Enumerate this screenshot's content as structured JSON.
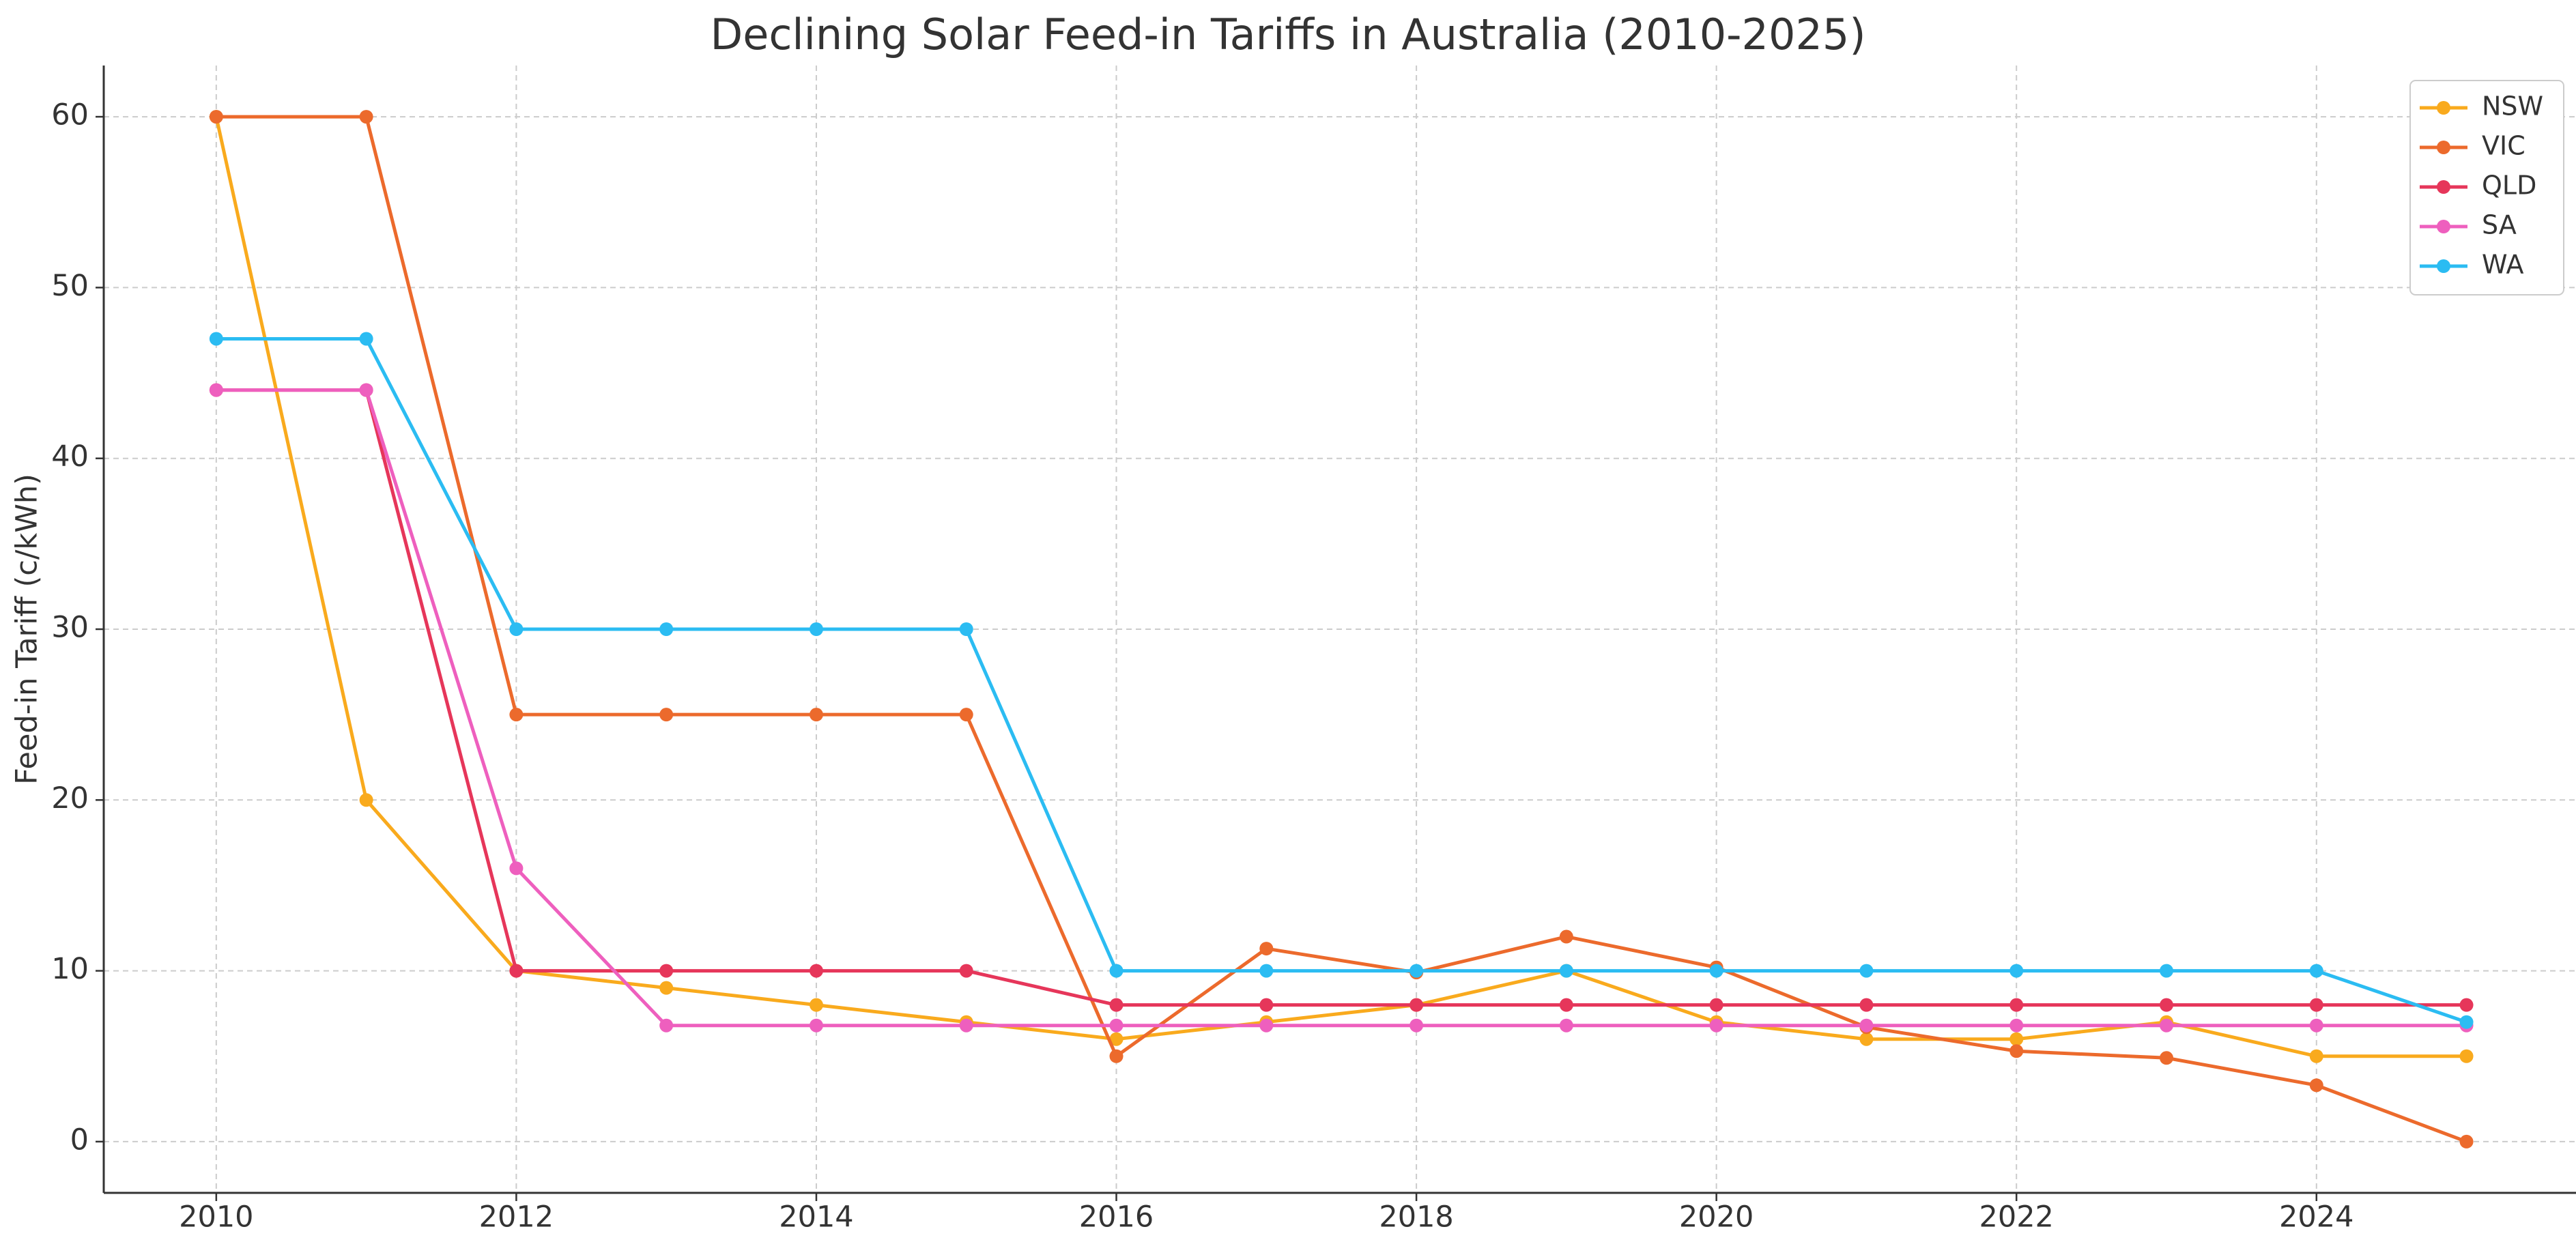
{
  "chart_data": {
    "type": "line",
    "title": "Declining Solar Feed-in Tariffs in Australia (2010-2025)",
    "y_label": "Feed-in Tariff (c/kWh)",
    "x": [
      2010,
      2011,
      2012,
      2013,
      2014,
      2015,
      2016,
      2017,
      2018,
      2019,
      2020,
      2021,
      2022,
      2023,
      2024,
      2025
    ],
    "series": [
      {
        "name": "NSW",
        "color": "#f9aa1d",
        "values": [
          60,
          20,
          10,
          9,
          8,
          7,
          6,
          7,
          8,
          10,
          7,
          6,
          6,
          7,
          5,
          5
        ]
      },
      {
        "name": "VIC",
        "color": "#ec6a2c",
        "values": [
          60,
          60,
          25,
          25,
          25,
          25,
          5,
          11.3,
          9.9,
          12,
          10.2,
          6.7,
          5.3,
          4.9,
          3.3,
          0
        ]
      },
      {
        "name": "QLD",
        "color": "#e6365a",
        "values": [
          44,
          44,
          10,
          10,
          10,
          10,
          8,
          8,
          8,
          8,
          8,
          8,
          8,
          8,
          8,
          8
        ]
      },
      {
        "name": "SA",
        "color": "#ee5fbe",
        "values": [
          44,
          44,
          16,
          6.8,
          6.8,
          6.8,
          6.8,
          6.8,
          6.8,
          6.8,
          6.8,
          6.8,
          6.8,
          6.8,
          6.8,
          6.8
        ]
      },
      {
        "name": "WA",
        "color": "#2bbcf2",
        "values": [
          47,
          47,
          30,
          30,
          30,
          30,
          10,
          10,
          10,
          10,
          10,
          10,
          10,
          10,
          10,
          7
        ]
      }
    ],
    "xlim": [
      2009.25,
      2025.73
    ],
    "xticks": [
      2010,
      2012,
      2014,
      2016,
      2018,
      2020,
      2022,
      2024
    ],
    "ylim": [
      -3,
      63
    ],
    "yticks": [
      0,
      10,
      20,
      30,
      40,
      50,
      60
    ],
    "grid": true,
    "legend": "upper right"
  }
}
